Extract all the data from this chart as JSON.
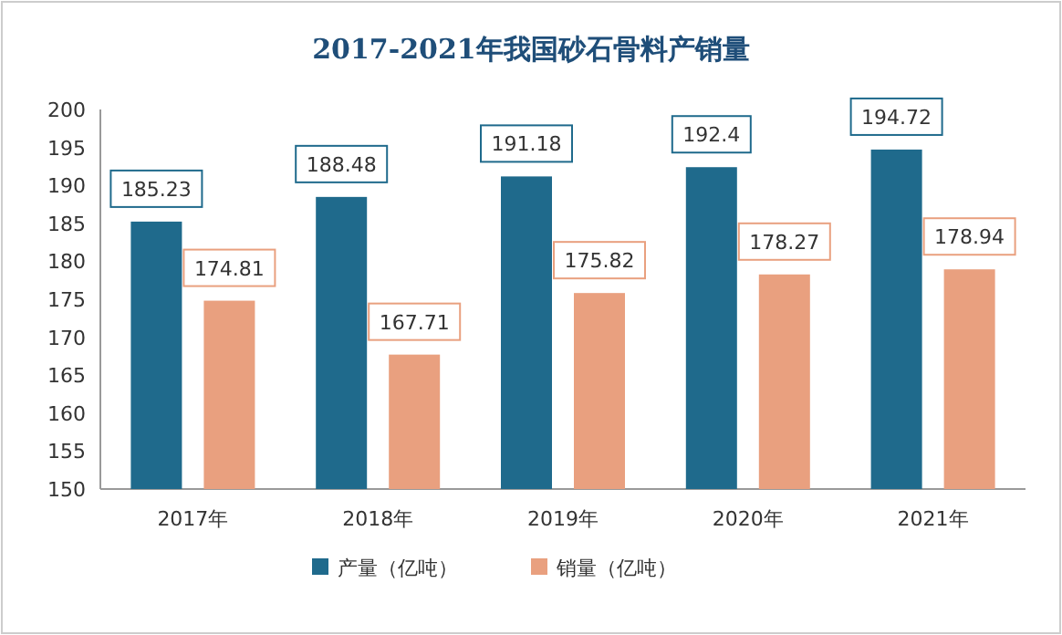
{
  "chart_data": {
    "type": "bar",
    "title": "2017-2021年我国砂石骨料产销量",
    "categories": [
      "2017年",
      "2018年",
      "2019年",
      "2020年",
      "2021年"
    ],
    "series": [
      {
        "name": "产量（亿吨）",
        "color": "#1f6a8c",
        "values": [
          185.23,
          188.48,
          191.18,
          192.4,
          194.72
        ]
      },
      {
        "name": "销量（亿吨）",
        "color": "#e9a07f",
        "values": [
          174.81,
          167.71,
          175.82,
          178.27,
          178.94
        ]
      }
    ],
    "ylim": [
      150,
      200
    ],
    "yticks": [
      150,
      155,
      160,
      165,
      170,
      175,
      180,
      185,
      190,
      195,
      200
    ],
    "data_labels": true,
    "legend": "bottom",
    "grid": false
  }
}
